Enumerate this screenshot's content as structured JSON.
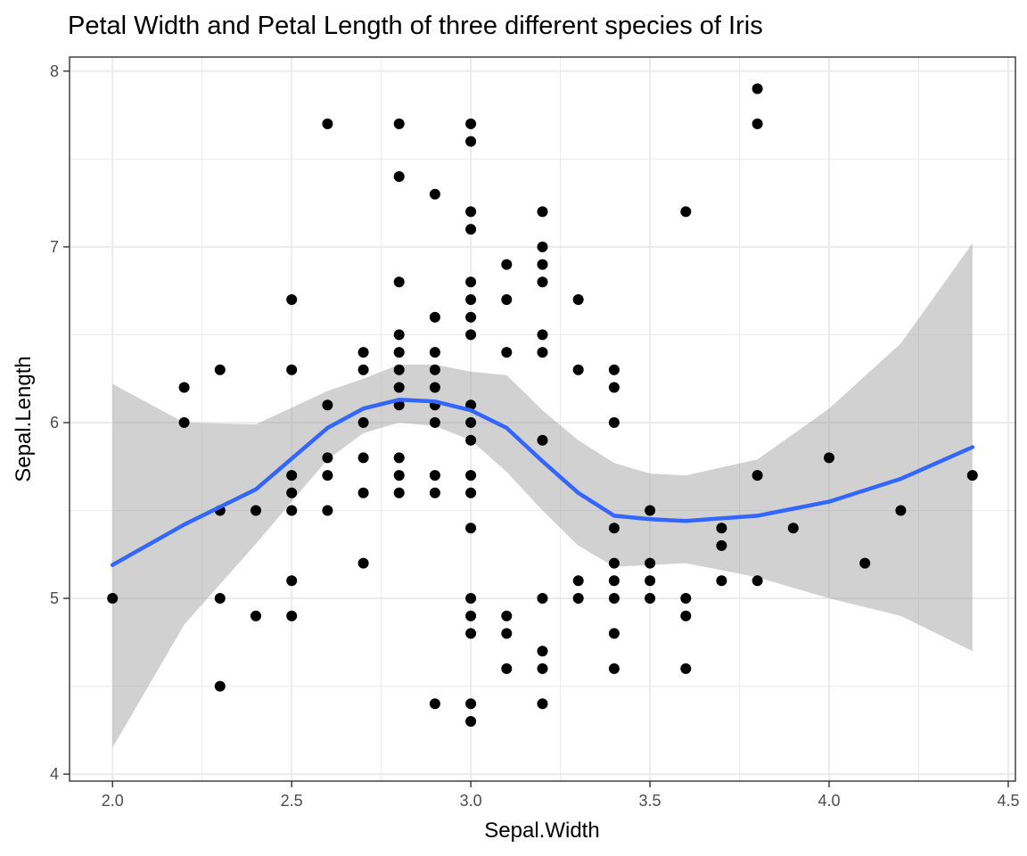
{
  "chart_data": {
    "type": "scatter",
    "title": "Petal Width and Petal Length of three different species of Iris",
    "xlabel": "Sepal.Width",
    "ylabel": "Sepal.Length",
    "xlim": [
      1.88,
      4.52
    ],
    "ylim": [
      3.96,
      8.08
    ],
    "x_ticks": [
      "2.0",
      "2.5",
      "3.0",
      "3.5",
      "4.0",
      "4.5"
    ],
    "y_ticks": [
      "4",
      "5",
      "6",
      "7",
      "8"
    ],
    "grid": true,
    "legend": "none",
    "colors": {
      "points": "#000000",
      "smooth_line": "#3366ff",
      "confidence_band": "#999999",
      "grid": "#ebebeb",
      "panel_border": "#333333"
    },
    "points": [
      [
        2.0,
        5.0
      ],
      [
        2.2,
        6.2
      ],
      [
        2.2,
        6.0
      ],
      [
        2.3,
        6.3
      ],
      [
        2.3,
        5.5
      ],
      [
        2.3,
        5.0
      ],
      [
        2.3,
        4.5
      ],
      [
        2.4,
        5.5
      ],
      [
        2.4,
        4.9
      ],
      [
        2.5,
        6.7
      ],
      [
        2.5,
        6.3
      ],
      [
        2.5,
        5.7
      ],
      [
        2.5,
        5.6
      ],
      [
        2.5,
        5.5
      ],
      [
        2.5,
        5.1
      ],
      [
        2.5,
        4.9
      ],
      [
        2.6,
        7.7
      ],
      [
        2.6,
        6.1
      ],
      [
        2.6,
        5.8
      ],
      [
        2.6,
        5.7
      ],
      [
        2.6,
        5.5
      ],
      [
        2.7,
        6.4
      ],
      [
        2.7,
        6.3
      ],
      [
        2.7,
        6.0
      ],
      [
        2.7,
        5.8
      ],
      [
        2.7,
        5.6
      ],
      [
        2.7,
        5.2
      ],
      [
        2.8,
        7.7
      ],
      [
        2.8,
        7.4
      ],
      [
        2.8,
        6.8
      ],
      [
        2.8,
        6.5
      ],
      [
        2.8,
        6.4
      ],
      [
        2.8,
        6.3
      ],
      [
        2.8,
        6.2
      ],
      [
        2.8,
        6.1
      ],
      [
        2.8,
        5.8
      ],
      [
        2.8,
        5.7
      ],
      [
        2.8,
        5.6
      ],
      [
        2.9,
        7.3
      ],
      [
        2.9,
        6.6
      ],
      [
        2.9,
        6.4
      ],
      [
        2.9,
        6.3
      ],
      [
        2.9,
        6.2
      ],
      [
        2.9,
        6.1
      ],
      [
        2.9,
        6.0
      ],
      [
        2.9,
        5.7
      ],
      [
        2.9,
        5.6
      ],
      [
        2.9,
        4.4
      ],
      [
        3.0,
        7.7
      ],
      [
        3.0,
        7.6
      ],
      [
        3.0,
        7.2
      ],
      [
        3.0,
        7.1
      ],
      [
        3.0,
        6.8
      ],
      [
        3.0,
        6.7
      ],
      [
        3.0,
        6.6
      ],
      [
        3.0,
        6.5
      ],
      [
        3.0,
        6.1
      ],
      [
        3.0,
        6.0
      ],
      [
        3.0,
        5.9
      ],
      [
        3.0,
        5.7
      ],
      [
        3.0,
        5.6
      ],
      [
        3.0,
        5.4
      ],
      [
        3.0,
        5.0
      ],
      [
        3.0,
        4.9
      ],
      [
        3.0,
        4.8
      ],
      [
        3.0,
        4.4
      ],
      [
        3.0,
        4.3
      ],
      [
        3.1,
        6.9
      ],
      [
        3.1,
        6.7
      ],
      [
        3.1,
        6.4
      ],
      [
        3.1,
        4.9
      ],
      [
        3.1,
        4.8
      ],
      [
        3.1,
        4.6
      ],
      [
        3.2,
        7.2
      ],
      [
        3.2,
        7.0
      ],
      [
        3.2,
        6.9
      ],
      [
        3.2,
        6.8
      ],
      [
        3.2,
        6.5
      ],
      [
        3.2,
        6.4
      ],
      [
        3.2,
        5.9
      ],
      [
        3.2,
        5.0
      ],
      [
        3.2,
        4.7
      ],
      [
        3.2,
        4.6
      ],
      [
        3.2,
        4.4
      ],
      [
        3.3,
        6.7
      ],
      [
        3.3,
        6.3
      ],
      [
        3.3,
        5.1
      ],
      [
        3.3,
        5.0
      ],
      [
        3.4,
        6.3
      ],
      [
        3.4,
        6.2
      ],
      [
        3.4,
        6.0
      ],
      [
        3.4,
        5.4
      ],
      [
        3.4,
        5.2
      ],
      [
        3.4,
        5.1
      ],
      [
        3.4,
        5.0
      ],
      [
        3.4,
        4.8
      ],
      [
        3.4,
        4.6
      ],
      [
        3.5,
        5.5
      ],
      [
        3.5,
        5.2
      ],
      [
        3.5,
        5.1
      ],
      [
        3.5,
        5.0
      ],
      [
        3.6,
        7.2
      ],
      [
        3.6,
        5.0
      ],
      [
        3.6,
        4.9
      ],
      [
        3.6,
        4.6
      ],
      [
        3.7,
        5.4
      ],
      [
        3.7,
        5.3
      ],
      [
        3.7,
        5.1
      ],
      [
        3.8,
        7.9
      ],
      [
        3.8,
        7.7
      ],
      [
        3.8,
        5.7
      ],
      [
        3.8,
        5.1
      ],
      [
        3.9,
        5.4
      ],
      [
        4.0,
        5.8
      ],
      [
        4.1,
        5.2
      ],
      [
        4.2,
        5.5
      ],
      [
        4.4,
        5.7
      ]
    ],
    "smooth": {
      "x": [
        2.0,
        2.2,
        2.4,
        2.6,
        2.7,
        2.8,
        2.9,
        3.0,
        3.1,
        3.2,
        3.3,
        3.4,
        3.5,
        3.6,
        3.8,
        4.0,
        4.2,
        4.4
      ],
      "y": [
        5.19,
        5.42,
        5.62,
        5.97,
        6.08,
        6.13,
        6.12,
        6.07,
        5.97,
        5.78,
        5.6,
        5.47,
        5.45,
        5.44,
        5.47,
        5.55,
        5.68,
        5.86
      ],
      "lower": [
        4.15,
        4.85,
        5.31,
        5.79,
        5.94,
        6.0,
        5.98,
        5.9,
        5.72,
        5.5,
        5.3,
        5.18,
        5.19,
        5.2,
        5.12,
        5.0,
        4.9,
        4.7
      ],
      "upper": [
        6.22,
        6.0,
        5.99,
        6.18,
        6.25,
        6.33,
        6.33,
        6.29,
        6.27,
        6.07,
        5.9,
        5.77,
        5.71,
        5.7,
        5.79,
        6.08,
        6.45,
        7.02
      ]
    }
  }
}
